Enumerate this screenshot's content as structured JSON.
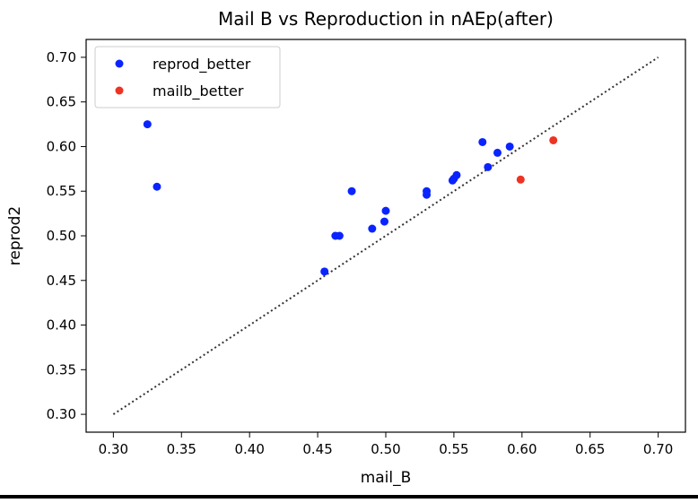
{
  "chart_data": {
    "type": "scatter",
    "title": "Mail B vs Reproduction in nAEp(after)",
    "xlabel": "mail_B",
    "ylabel": "reprod2",
    "xlim": [
      0.28,
      0.72
    ],
    "ylim": [
      0.28,
      0.72
    ],
    "xticks": [
      "0.30",
      "0.35",
      "0.40",
      "0.45",
      "0.50",
      "0.55",
      "0.60",
      "0.65",
      "0.70"
    ],
    "yticks": [
      "0.30",
      "0.35",
      "0.40",
      "0.45",
      "0.50",
      "0.55",
      "0.60",
      "0.65",
      "0.70"
    ],
    "grid": false,
    "legend_position": "top-left",
    "reference_line": {
      "x": [
        0.3,
        0.7
      ],
      "y": [
        0.3,
        0.7
      ],
      "style": "dotted",
      "color": "#333333"
    },
    "series": [
      {
        "name": "reprod_better",
        "color": "#0a24ff",
        "points": [
          {
            "x": 0.325,
            "y": 0.625
          },
          {
            "x": 0.332,
            "y": 0.555
          },
          {
            "x": 0.455,
            "y": 0.46
          },
          {
            "x": 0.463,
            "y": 0.5
          },
          {
            "x": 0.466,
            "y": 0.5
          },
          {
            "x": 0.475,
            "y": 0.55
          },
          {
            "x": 0.49,
            "y": 0.508
          },
          {
            "x": 0.499,
            "y": 0.516
          },
          {
            "x": 0.5,
            "y": 0.528
          },
          {
            "x": 0.53,
            "y": 0.546
          },
          {
            "x": 0.53,
            "y": 0.55
          },
          {
            "x": 0.549,
            "y": 0.562
          },
          {
            "x": 0.55,
            "y": 0.564
          },
          {
            "x": 0.552,
            "y": 0.568
          },
          {
            "x": 0.571,
            "y": 0.605
          },
          {
            "x": 0.575,
            "y": 0.577
          },
          {
            "x": 0.582,
            "y": 0.593
          },
          {
            "x": 0.591,
            "y": 0.6
          }
        ]
      },
      {
        "name": "mailb_better",
        "color": "#ee3322",
        "points": [
          {
            "x": 0.599,
            "y": 0.563
          },
          {
            "x": 0.623,
            "y": 0.607
          }
        ]
      }
    ]
  }
}
